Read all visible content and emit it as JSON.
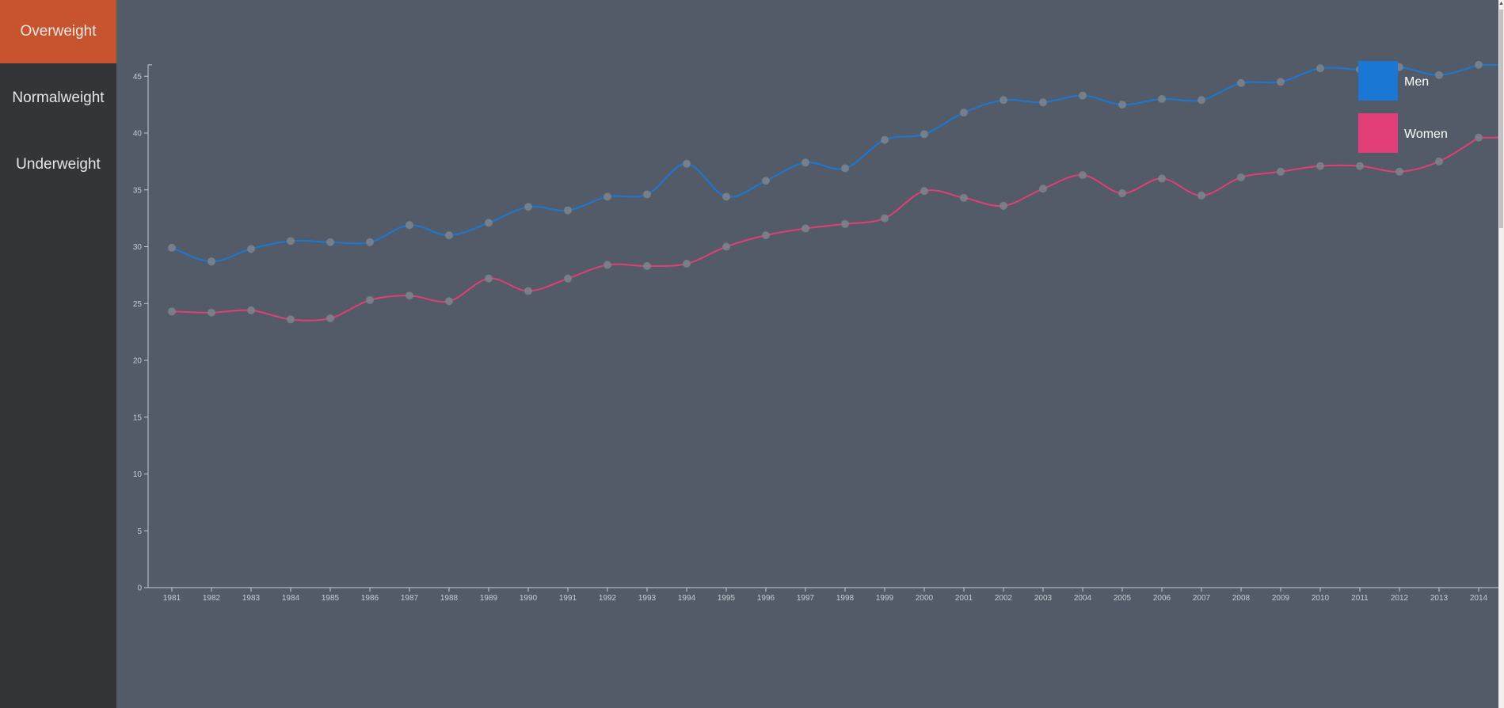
{
  "sidebar": {
    "items": [
      {
        "label": "Overweight",
        "active": true
      },
      {
        "label": "Normalweight",
        "active": false
      },
      {
        "label": "Underweight",
        "active": false
      }
    ]
  },
  "colors": {
    "men": "#1a78d4",
    "women": "#e23e77",
    "point": "#7b828c",
    "active_nav": "#c8532f"
  },
  "chart_data": {
    "type": "line",
    "x": [
      1981,
      1982,
      1983,
      1984,
      1985,
      1986,
      1987,
      1988,
      1989,
      1990,
      1991,
      1992,
      1993,
      1994,
      1995,
      1996,
      1997,
      1998,
      1999,
      2000,
      2001,
      2002,
      2003,
      2004,
      2005,
      2006,
      2007,
      2008,
      2009,
      2010,
      2011,
      2012,
      2013,
      2014
    ],
    "y_ticks": [
      0,
      5,
      10,
      15,
      20,
      25,
      30,
      35,
      40,
      45
    ],
    "ylim": [
      0,
      46
    ],
    "series": [
      {
        "name": "Men",
        "color": "#1a78d4",
        "values": [
          29.9,
          28.7,
          29.8,
          30.5,
          30.4,
          30.4,
          31.9,
          31.0,
          32.1,
          33.5,
          33.2,
          34.4,
          34.6,
          37.3,
          34.4,
          35.8,
          37.4,
          36.9,
          39.4,
          39.9,
          41.8,
          42.9,
          42.7,
          43.3,
          42.5,
          43.0,
          42.9,
          44.4,
          44.5,
          45.7,
          45.6,
          45.8,
          45.1,
          46.0
        ]
      },
      {
        "name": "Women",
        "color": "#e23e77",
        "values": [
          24.3,
          24.2,
          24.4,
          23.6,
          23.7,
          25.3,
          25.7,
          25.2,
          27.2,
          26.1,
          27.2,
          28.4,
          28.3,
          28.5,
          30.0,
          31.0,
          31.6,
          32.0,
          32.5,
          34.9,
          34.3,
          33.6,
          35.1,
          36.3,
          34.7,
          36.0,
          34.5,
          36.1,
          36.6,
          37.1,
          37.1,
          36.6,
          37.5,
          39.6
        ]
      }
    ],
    "legend": {
      "placement": "top-right",
      "entries": [
        "Men",
        "Women"
      ]
    }
  }
}
